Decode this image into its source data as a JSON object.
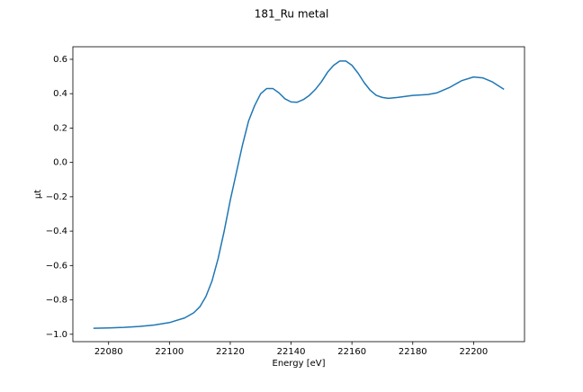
{
  "chart_data": {
    "type": "line",
    "title": "181_Ru metal",
    "x_label": "Energy [eV]",
    "y_label": "μt",
    "series": [
      {
        "color": "#1f77b4",
        "x": [
          22075,
          22080,
          22085,
          22090,
          22095,
          22100,
          22105,
          22108,
          22110,
          22112,
          22114,
          22116,
          22118,
          22120,
          22122,
          22124,
          22126,
          22128,
          22130,
          22132,
          22134,
          22136,
          22138,
          22140,
          22142,
          22144,
          22146,
          22148,
          22150,
          22152,
          22154,
          22156,
          22158,
          22160,
          22162,
          22164,
          22166,
          22168,
          22170,
          22172,
          22175,
          22180,
          22185,
          22188,
          22192,
          22196,
          22200,
          22203,
          22206,
          22210
        ],
        "values": [
          -0.965,
          -0.963,
          -0.96,
          -0.955,
          -0.946,
          -0.932,
          -0.905,
          -0.875,
          -0.84,
          -0.78,
          -0.69,
          -0.56,
          -0.4,
          -0.22,
          -0.06,
          0.1,
          0.24,
          0.33,
          0.4,
          0.43,
          0.43,
          0.405,
          0.37,
          0.352,
          0.35,
          0.365,
          0.39,
          0.425,
          0.47,
          0.525,
          0.565,
          0.59,
          0.59,
          0.565,
          0.52,
          0.465,
          0.42,
          0.39,
          0.378,
          0.373,
          0.378,
          0.39,
          0.395,
          0.405,
          0.435,
          0.475,
          0.497,
          0.492,
          0.47,
          0.425
        ]
      }
    ],
    "xlim": [
      22068.25,
      22216.75
    ],
    "xticks": [
      22080,
      22100,
      22120,
      22140,
      22160,
      22180,
      22200
    ],
    "ylim": [
      -1.043,
      0.673
    ],
    "yticks": [
      {
        "value": -1.0,
        "label": "−1.0"
      },
      {
        "value": -0.8,
        "label": "−0.8"
      },
      {
        "value": -0.6,
        "label": "−0.6"
      },
      {
        "value": -0.4,
        "label": "−0.4"
      },
      {
        "value": -0.2,
        "label": "−0.2"
      },
      {
        "value": 0.0,
        "label": "0.0"
      },
      {
        "value": 0.2,
        "label": "0.2"
      },
      {
        "value": 0.4,
        "label": "0.4"
      },
      {
        "value": 0.6,
        "label": "0.6"
      }
    ]
  }
}
